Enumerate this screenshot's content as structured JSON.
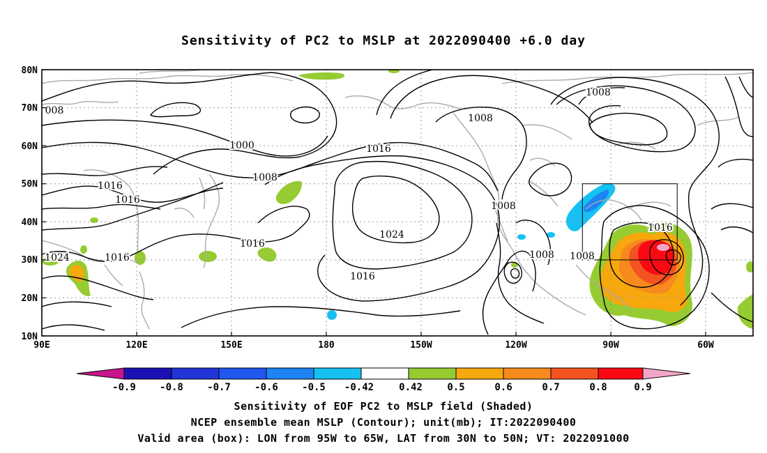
{
  "title": "Sensitivity of PC2 to MSLP at 2022090400 +6.0 day",
  "map": {
    "lat_labels": [
      "80N",
      "70N",
      "60N",
      "50N",
      "40N",
      "30N",
      "20N",
      "10N"
    ],
    "lon_labels": [
      "90E",
      "120E",
      "150E",
      "180",
      "150W",
      "120W",
      "90W",
      "60W"
    ],
    "contour_labels": [
      {
        "text": "008"
      },
      {
        "text": "1000"
      },
      {
        "text": "1016"
      },
      {
        "text": "1008"
      },
      {
        "text": "1016"
      },
      {
        "text": "1016"
      },
      {
        "text": "1016"
      },
      {
        "text": "1024"
      },
      {
        "text": "1016"
      },
      {
        "text": "1024"
      },
      {
        "text": "1016"
      },
      {
        "text": "1008"
      },
      {
        "text": "1008"
      },
      {
        "text": "1008"
      },
      {
        "text": "1008"
      },
      {
        "text": "1008"
      },
      {
        "text": "1016"
      }
    ],
    "valid_box": {
      "lon_from": "95W",
      "lon_to": "65W",
      "lat_from": "30N",
      "lat_to": "50N"
    }
  },
  "colorbar": {
    "colors": [
      "#c7158c",
      "#1a11b4",
      "#2233d8",
      "#1f57ef",
      "#1e84f2",
      "#16c1f2",
      "#ffffff",
      "#96cb32",
      "#f7a80d",
      "#f68a1e",
      "#f45220",
      "#f90a12",
      "#f3a6c9"
    ],
    "labels": [
      "-0.9",
      "-0.8",
      "-0.7",
      "-0.6",
      "-0.5",
      "-0.42",
      "0.42",
      "0.5",
      "0.6",
      "0.7",
      "0.8",
      "0.9"
    ]
  },
  "captions": {
    "line1": "Sensitivity of EOF PC2 to MSLP field (Shaded)",
    "line2": "NCEP ensemble mean MSLP (Contour); unit(mb); IT:2022090400",
    "line3": "Valid area (box): LON from 95W to 65W, LAT from 30N to 50N; VT: 2022091000"
  }
}
